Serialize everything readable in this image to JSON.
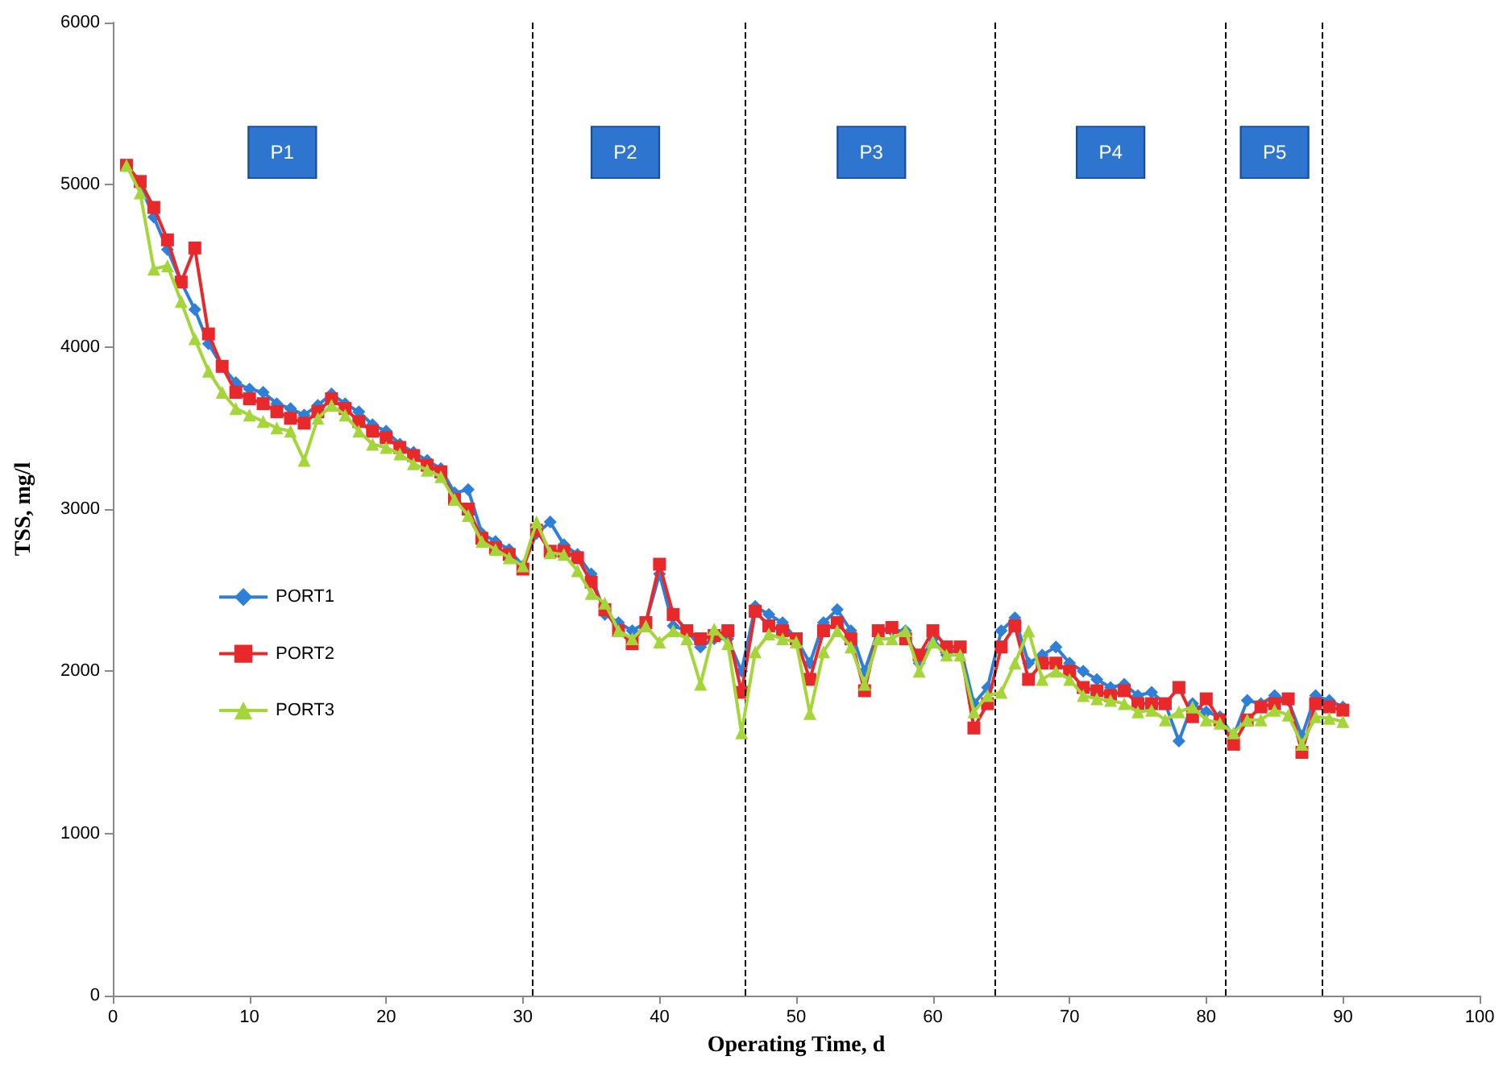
{
  "chart_data": {
    "type": "line",
    "xlabel": "Operating Time, d",
    "ylabel": "TSS, mg/l",
    "x": [
      1,
      2,
      3,
      4,
      5,
      6,
      7,
      8,
      9,
      10,
      11,
      12,
      13,
      14,
      15,
      16,
      17,
      18,
      19,
      20,
      21,
      22,
      23,
      24,
      25,
      26,
      27,
      28,
      29,
      30,
      31,
      32,
      33,
      34,
      35,
      36,
      37,
      38,
      39,
      40,
      41,
      42,
      43,
      44,
      45,
      46,
      47,
      48,
      49,
      50,
      51,
      52,
      53,
      54,
      55,
      56,
      57,
      58,
      59,
      60,
      61,
      62,
      63,
      64,
      65,
      66,
      67,
      68,
      69,
      70,
      71,
      72,
      73,
      74,
      75,
      76,
      77,
      78,
      79,
      80,
      81,
      82,
      83,
      84,
      85,
      86,
      87,
      88,
      89,
      90
    ],
    "series": [
      {
        "name": "PORT1",
        "color": "#2e7fd8",
        "marker": "diamond",
        "values": [
          5120,
          5000,
          4800,
          4600,
          4400,
          4230,
          4020,
          3880,
          3780,
          3740,
          3720,
          3650,
          3620,
          3580,
          3640,
          3710,
          3650,
          3600,
          3520,
          3480,
          3400,
          3350,
          3300,
          3250,
          3100,
          3120,
          2850,
          2800,
          2750,
          2650,
          2850,
          2920,
          2780,
          2720,
          2600,
          2350,
          2300,
          2250,
          2300,
          2600,
          2280,
          2250,
          2150,
          2200,
          2200,
          2000,
          2400,
          2350,
          2300,
          2200,
          2050,
          2300,
          2380,
          2250,
          2000,
          2250,
          2250,
          2250,
          2050,
          2200,
          2100,
          2150,
          1800,
          1900,
          2250,
          2330,
          2050,
          2100,
          2150,
          2050,
          2000,
          1950,
          1900,
          1920,
          1850,
          1870,
          1800,
          1570,
          1800,
          1750,
          1720,
          1600,
          1820,
          1800,
          1850,
          1820,
          1600,
          1850,
          1820,
          1780
        ]
      },
      {
        "name": "PORT2",
        "color": "#e8282a",
        "marker": "square",
        "values": [
          5120,
          5020,
          4860,
          4660,
          4400,
          4610,
          4080,
          3880,
          3720,
          3680,
          3650,
          3600,
          3560,
          3530,
          3600,
          3680,
          3620,
          3540,
          3480,
          3440,
          3380,
          3330,
          3270,
          3230,
          3060,
          3000,
          2820,
          2760,
          2720,
          2630,
          2870,
          2740,
          2740,
          2700,
          2550,
          2380,
          2250,
          2170,
          2300,
          2660,
          2350,
          2250,
          2200,
          2220,
          2250,
          1870,
          2370,
          2280,
          2250,
          2200,
          1950,
          2250,
          2300,
          2200,
          1880,
          2250,
          2270,
          2200,
          2100,
          2250,
          2150,
          2150,
          1650,
          1800,
          2150,
          2280,
          1950,
          2050,
          2050,
          2000,
          1900,
          1880,
          1850,
          1880,
          1800,
          1800,
          1800,
          1900,
          1720,
          1830,
          1700,
          1550,
          1700,
          1780,
          1800,
          1830,
          1500,
          1800,
          1780,
          1760
        ]
      },
      {
        "name": "PORT3",
        "color": "#a4d63a",
        "marker": "triangle",
        "values": [
          5120,
          4950,
          4480,
          4500,
          4280,
          4050,
          3850,
          3720,
          3620,
          3580,
          3540,
          3500,
          3480,
          3300,
          3560,
          3640,
          3580,
          3480,
          3400,
          3380,
          3340,
          3280,
          3240,
          3200,
          3060,
          2960,
          2800,
          2750,
          2700,
          2650,
          2920,
          2730,
          2720,
          2620,
          2480,
          2420,
          2250,
          2200,
          2280,
          2180,
          2250,
          2200,
          1920,
          2260,
          2170,
          1620,
          2120,
          2230,
          2200,
          2180,
          1740,
          2120,
          2250,
          2150,
          1920,
          2200,
          2200,
          2250,
          2000,
          2180,
          2100,
          2100,
          1750,
          1850,
          1870,
          2050,
          2250,
          1950,
          2000,
          1950,
          1850,
          1830,
          1820,
          1800,
          1750,
          1760,
          1700,
          1750,
          1780,
          1700,
          1680,
          1620,
          1700,
          1700,
          1760,
          1730,
          1550,
          1720,
          1710,
          1690
        ]
      }
    ],
    "xlim": [
      0,
      100
    ],
    "xticks": [
      0,
      10,
      20,
      30,
      40,
      50,
      60,
      70,
      80,
      90,
      100
    ],
    "ylim": [
      0,
      6000
    ],
    "yticks": [
      0,
      1000,
      2000,
      3000,
      4000,
      5000,
      6000
    ],
    "grid": false,
    "legend": "left",
    "line_style": "solid",
    "annotations": [
      {
        "text": "P1",
        "x": 12.4,
        "y": 5200
      },
      {
        "text": "P2",
        "x": 37.5,
        "y": 5200
      },
      {
        "text": "P3",
        "x": 55.5,
        "y": 5200
      },
      {
        "text": "P4",
        "x": 73,
        "y": 5200
      },
      {
        "text": "P5",
        "x": 85,
        "y": 5200
      }
    ],
    "ref_lines": [
      {
        "axis": "x",
        "value": 30.7,
        "color": "#000000",
        "line_style": "dashed"
      },
      {
        "axis": "x",
        "value": 46.2,
        "color": "#000000",
        "line_style": "dashed"
      },
      {
        "axis": "x",
        "value": 64.5,
        "color": "#000000",
        "line_style": "dashed"
      },
      {
        "axis": "x",
        "value": 81.4,
        "color": "#000000",
        "line_style": "dashed"
      },
      {
        "axis": "x",
        "value": 88.5,
        "color": "#000000",
        "line_style": "dashed"
      }
    ]
  }
}
